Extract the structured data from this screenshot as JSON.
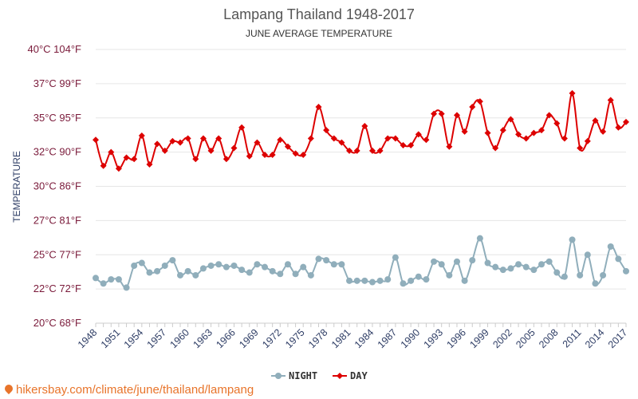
{
  "chart_data": {
    "type": "line",
    "title": "Lampang Thailand 1948-2017",
    "subtitle": "JUNE AVERAGE TEMPERATURE",
    "ylabel": "TEMPERATURE",
    "xlabel": "",
    "ylim": [
      20,
      40
    ],
    "yticks": [
      {
        "value": 20,
        "label": "20°C 68°F"
      },
      {
        "value": 22.5,
        "label": "22°C 72°F"
      },
      {
        "value": 25,
        "label": "25°C 77°F"
      },
      {
        "value": 27.5,
        "label": "27°C 81°F"
      },
      {
        "value": 30,
        "label": "30°C 86°F"
      },
      {
        "value": 32.5,
        "label": "32°C 90°F"
      },
      {
        "value": 35,
        "label": "35°C 95°F"
      },
      {
        "value": 37.5,
        "label": "37°C 99°F"
      },
      {
        "value": 40,
        "label": "40°C 104°F"
      }
    ],
    "xticks": [
      1948,
      1951,
      1954,
      1957,
      1960,
      1963,
      1966,
      1969,
      1972,
      1975,
      1978,
      1981,
      1984,
      1987,
      1990,
      1993,
      1996,
      1999,
      2002,
      2005,
      2008,
      2011,
      2014,
      2017
    ],
    "x": [
      1948,
      1949,
      1950,
      1951,
      1952,
      1953,
      1954,
      1955,
      1956,
      1957,
      1958,
      1959,
      1960,
      1961,
      1962,
      1963,
      1964,
      1965,
      1966,
      1967,
      1968,
      1969,
      1970,
      1971,
      1972,
      1973,
      1974,
      1975,
      1976,
      1977,
      1978,
      1979,
      1980,
      1981,
      1982,
      1983,
      1984,
      1985,
      1986,
      1987,
      1988,
      1989,
      1990,
      1991,
      1992,
      1993,
      1994,
      1995,
      1996,
      1997,
      1998,
      1999,
      2000,
      2001,
      2002,
      2003,
      2004,
      2005,
      2006,
      2007,
      2008,
      2009,
      2010,
      2011,
      2012,
      2013,
      2014,
      2015,
      2016,
      2017
    ],
    "series": [
      {
        "name": "NIGHT",
        "color": "#90aebb",
        "marker": "circle",
        "values": [
          23.3,
          22.9,
          23.2,
          23.2,
          22.6,
          24.2,
          24.4,
          23.7,
          23.8,
          24.2,
          24.6,
          23.5,
          23.8,
          23.5,
          24.0,
          24.2,
          24.3,
          24.1,
          24.2,
          23.9,
          23.7,
          24.3,
          24.1,
          23.8,
          23.6,
          24.3,
          23.6,
          24.1,
          23.5,
          24.7,
          24.6,
          24.3,
          24.3,
          23.1,
          23.1,
          23.1,
          23.0,
          23.1,
          23.2,
          24.8,
          22.9,
          23.1,
          23.4,
          23.2,
          24.5,
          24.3,
          23.5,
          24.5,
          23.1,
          24.6,
          26.2,
          24.4,
          24.1,
          23.9,
          24.0,
          24.3,
          24.1,
          23.9,
          24.3,
          24.5,
          23.7,
          23.4,
          26.1,
          23.5,
          25.0,
          22.9,
          23.5,
          25.6,
          24.7,
          23.8
        ]
      },
      {
        "name": "DAY",
        "color": "#dd0000",
        "marker": "diamond",
        "values": [
          33.4,
          31.5,
          32.5,
          31.3,
          32.1,
          32.0,
          33.7,
          31.6,
          33.1,
          32.6,
          33.3,
          33.2,
          33.5,
          32.0,
          33.5,
          32.6,
          33.5,
          32.0,
          32.8,
          34.3,
          32.2,
          33.2,
          32.3,
          32.3,
          33.4,
          32.9,
          32.4,
          32.3,
          33.5,
          35.8,
          34.1,
          33.5,
          33.2,
          32.6,
          32.6,
          34.4,
          32.6,
          32.6,
          33.5,
          33.5,
          33.0,
          33.0,
          33.8,
          33.4,
          35.3,
          35.3,
          32.9,
          35.2,
          34.0,
          35.8,
          36.2,
          33.9,
          32.8,
          34.1,
          34.9,
          33.8,
          33.5,
          33.9,
          34.1,
          35.2,
          34.6,
          33.5,
          36.8,
          32.8,
          33.3,
          34.8,
          34.0,
          36.3,
          34.3,
          34.7
        ]
      }
    ],
    "legend": {
      "position": "bottom",
      "items": [
        "NIGHT",
        "DAY"
      ]
    },
    "grid": true
  },
  "source": {
    "text": "hikersbay.com/climate/june/thailand/lampang"
  }
}
